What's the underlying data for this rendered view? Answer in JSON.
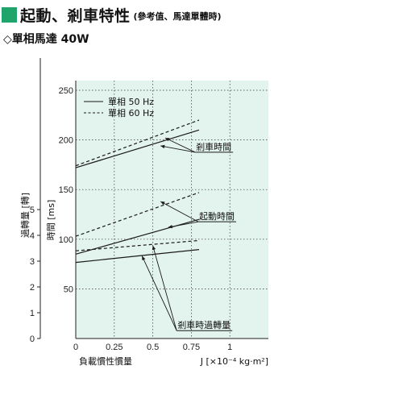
{
  "header": {
    "title": "起動、剎車特性",
    "note": "(參考值、馬達單體時)",
    "subtitle": "◇單相馬達 40W"
  },
  "colors": {
    "accent": "#1fa56b",
    "plot_background": "#e3f3ee",
    "line": "#1a1a1a"
  },
  "chart_data": {
    "type": "line",
    "xlabel_left": "負載慣性慣量",
    "xlabel_right": "J [×10⁻⁴ kg·m²]",
    "xlim": [
      0,
      1.25
    ],
    "x_ticks": [
      {
        "v": 0,
        "label": "0"
      },
      {
        "v": 0.25,
        "label": "0.25"
      },
      {
        "v": 0.5,
        "label": "0.5"
      },
      {
        "v": 0.75,
        "label": "0.75"
      },
      {
        "v": 1,
        "label": "1"
      }
    ],
    "ylabel_time": "時間 [ms]",
    "ylim_time": [
      0,
      250
    ],
    "y_ticks_time": [
      {
        "v": 50,
        "label": "50"
      },
      {
        "v": 100,
        "label": "100"
      },
      {
        "v": 150,
        "label": "150"
      },
      {
        "v": 200,
        "label": "200"
      },
      {
        "v": 250,
        "label": "250"
      }
    ],
    "ylabel_overrun": "過轉量 [轉]",
    "ylim_overrun": [
      0,
      5
    ],
    "y_ticks_overrun": [
      {
        "v": 0,
        "label": "0"
      },
      {
        "v": 1,
        "label": "1"
      },
      {
        "v": 2,
        "label": "2"
      },
      {
        "v": 3,
        "label": "3"
      },
      {
        "v": 4,
        "label": "4"
      },
      {
        "v": 5,
        "label": "5"
      }
    ],
    "legend": [
      {
        "label": "單相  50 Hz",
        "dash": false
      },
      {
        "label": "單相  60 Hz",
        "dash": true
      }
    ],
    "series": [
      {
        "group": "剎車時間",
        "name": "單相  50 Hz",
        "dash": false,
        "points": [
          [
            0,
            172
          ],
          [
            0.8,
            210
          ]
        ]
      },
      {
        "group": "剎車時間",
        "name": "單相  60 Hz",
        "dash": true,
        "points": [
          [
            0,
            174
          ],
          [
            0.8,
            220
          ]
        ]
      },
      {
        "group": "起動時間",
        "name": "單相  50 Hz",
        "dash": false,
        "points": [
          [
            0,
            85
          ],
          [
            0.8,
            120
          ]
        ]
      },
      {
        "group": "起動時間",
        "name": "單相  60 Hz",
        "dash": true,
        "points": [
          [
            0,
            103
          ],
          [
            0.8,
            147
          ]
        ]
      },
      {
        "group": "剎車時過轉量",
        "name": "單相  50 Hz",
        "dash": false,
        "points": [
          [
            0,
            2.95
          ],
          [
            0.8,
            3.45
          ]
        ]
      },
      {
        "group": "剎車時過轉量",
        "name": "單相  60 Hz",
        "dash": true,
        "points": [
          [
            0,
            3.4
          ],
          [
            0.8,
            3.8
          ]
        ]
      }
    ],
    "annotations": [
      {
        "text": "剎車時間",
        "x": 0.78,
        "y": 190,
        "targets": [
          [
            0.55,
            194
          ],
          [
            0.58,
            202
          ]
        ]
      },
      {
        "text": "起動時間",
        "x": 0.8,
        "y": 120,
        "targets": [
          [
            0.55,
            138
          ],
          [
            0.6,
            112
          ]
        ]
      },
      {
        "text": "剎車時過轉量",
        "x": 0.66,
        "y": 0.4,
        "targets": [
          [
            0.5,
            3.6
          ],
          [
            0.43,
            3.2
          ]
        ]
      }
    ]
  }
}
